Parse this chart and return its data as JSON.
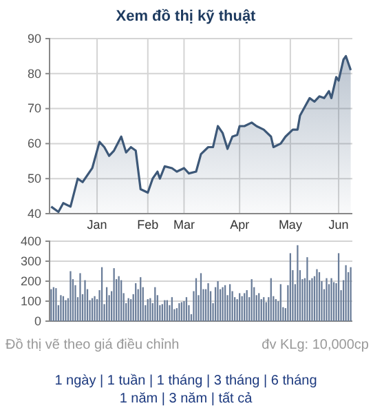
{
  "chart_data": [
    {
      "type": "area",
      "title": "Xem đồ thị kỹ thuật",
      "ylim": [
        40,
        90
      ],
      "yticks": [
        40,
        50,
        60,
        70,
        80,
        90
      ],
      "grid": true,
      "categories": [
        null,
        null,
        null,
        null,
        null,
        null,
        null,
        null,
        null,
        null,
        null,
        null,
        null,
        null,
        null,
        null,
        null,
        null,
        null,
        "Jan",
        null,
        null,
        null,
        null,
        null,
        null,
        null,
        null,
        null,
        null,
        null,
        null,
        null,
        null,
        null,
        null,
        null,
        null,
        null,
        null,
        "Feb",
        null,
        null,
        null,
        null,
        null,
        null,
        null,
        null,
        null,
        null,
        null,
        null,
        null,
        null,
        "Mar",
        null,
        null,
        null,
        null,
        null,
        null,
        null,
        null,
        null,
        null,
        null,
        null,
        null,
        null,
        null,
        null,
        null,
        null,
        null,
        null,
        null,
        null,
        "Apr",
        null,
        null,
        null,
        null,
        null,
        null,
        null,
        null,
        null,
        null,
        null,
        null,
        null,
        null,
        null,
        null,
        null,
        null,
        null,
        null,
        "May",
        null,
        null,
        null,
        null,
        null,
        null,
        null,
        null,
        null,
        null,
        null,
        null,
        null,
        null,
        null,
        null,
        null,
        null,
        null,
        "Jun",
        null,
        null,
        null,
        null,
        null
      ],
      "series": [
        {
          "color": "#3d5878",
          "values": [
            42,
            null,
            null,
            40.5,
            null,
            43,
            null,
            null,
            42,
            null,
            null,
            50,
            null,
            49,
            null,
            null,
            null,
            53,
            null,
            null,
            60.5,
            null,
            59,
            null,
            56.5,
            null,
            58,
            null,
            null,
            62,
            null,
            57.5,
            null,
            59,
            null,
            58,
            null,
            47,
            null,
            null,
            46,
            null,
            50,
            null,
            52,
            50,
            null,
            53.5,
            null,
            null,
            53,
            null,
            52,
            null,
            null,
            53,
            null,
            51.5,
            null,
            null,
            52,
            null,
            57,
            null,
            null,
            59,
            null,
            59,
            null,
            65,
            null,
            63,
            null,
            58.5,
            null,
            62,
            null,
            62.5,
            65,
            null,
            65,
            null,
            null,
            66,
            null,
            65,
            null,
            null,
            64,
            null,
            null,
            62,
            59,
            null,
            null,
            60,
            null,
            62,
            null,
            null,
            64,
            null,
            64,
            68,
            null,
            70.5,
            null,
            73,
            null,
            72,
            null,
            73.5,
            null,
            73,
            null,
            75,
            73,
            null,
            79,
            78,
            null,
            84,
            85,
            null,
            81
          ]
        }
      ]
    },
    {
      "type": "bar",
      "ylim": [
        0,
        400
      ],
      "yticks": [
        0,
        100,
        200,
        300,
        400
      ],
      "grid": "y",
      "categories": [
        null,
        null,
        null,
        null,
        null,
        null,
        null,
        null,
        null,
        null,
        null,
        null,
        null,
        null,
        null,
        null,
        null,
        null,
        null,
        null,
        null,
        null,
        null,
        null,
        null,
        null,
        null,
        null,
        null,
        null,
        null,
        null,
        null,
        null,
        null,
        null,
        null,
        null,
        null,
        null,
        null,
        null,
        null,
        null,
        null,
        null,
        null,
        null,
        null,
        null,
        null,
        null,
        null,
        null,
        null,
        null,
        null,
        null,
        null,
        null,
        null,
        null,
        null,
        null,
        null,
        null,
        null,
        null,
        null,
        null,
        null,
        null,
        null,
        null,
        null,
        null,
        null,
        null,
        null,
        null,
        null,
        null,
        null,
        null,
        null,
        null,
        null,
        null,
        null,
        null,
        null,
        null,
        null,
        null,
        null,
        null,
        null,
        null,
        null,
        null,
        null,
        null,
        null,
        null,
        null,
        null,
        null,
        null,
        null,
        null,
        null,
        null,
        null,
        null,
        null,
        null,
        null,
        null,
        null,
        null,
        null,
        null,
        null,
        null,
        null
      ],
      "annotations": [
        "Đồ thị vẽ theo giá điều chỉnh",
        "đv KLg: 10,000cp",
        "1 ngày | 1 tuần | 1 tháng | 3 tháng | 6 tháng",
        "1 năm | 3 năm | tất cả"
      ],
      "series": [
        {
          "color": "#6a7d99",
          "values": [
            160,
            170,
            165,
            80,
            130,
            125,
            105,
            115,
            250,
            210,
            180,
            120,
            240,
            135,
            205,
            160,
            105,
            115,
            125,
            110,
            155,
            270,
            85,
            170,
            130,
            150,
            265,
            210,
            225,
            205,
            140,
            90,
            115,
            110,
            135,
            190,
            160,
            220,
            170,
            80,
            110,
            115,
            90,
            170,
            130,
            80,
            85,
            105,
            105,
            80,
            120,
            60,
            65,
            90,
            95,
            100,
            120,
            80,
            35,
            150,
            215,
            130,
            240,
            160,
            160,
            190,
            150,
            90,
            170,
            200,
            160,
            170,
            180,
            130,
            185,
            150,
            120,
            110,
            140,
            125,
            140,
            155,
            120,
            210,
            170,
            130,
            140,
            110,
            120,
            95,
            120,
            215,
            125,
            110,
            100,
            185,
            70,
            65,
            180,
            340,
            255,
            185,
            380,
            255,
            210,
            215,
            320,
            205,
            215,
            225,
            260,
            245,
            200,
            160,
            215,
            185,
            215,
            195,
            190,
            340,
            155,
            205,
            280,
            245,
            270
          ]
        }
      ]
    }
  ]
}
